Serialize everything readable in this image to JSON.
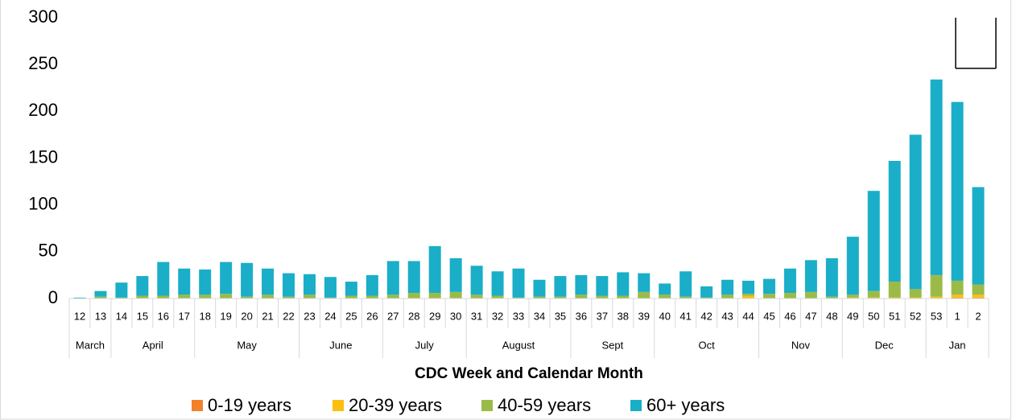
{
  "chart_data": {
    "type": "stacked-bar",
    "x_label": "CDC Week and Calendar Month",
    "categories": [
      "12",
      "13",
      "14",
      "15",
      "16",
      "17",
      "18",
      "19",
      "20",
      "21",
      "22",
      "23",
      "24",
      "25",
      "26",
      "27",
      "28",
      "29",
      "30",
      "31",
      "32",
      "33",
      "34",
      "35",
      "36",
      "37",
      "38",
      "39",
      "40",
      "41",
      "42",
      "43",
      "44",
      "45",
      "46",
      "47",
      "48",
      "49",
      "50",
      "51",
      "52",
      "53",
      "1",
      "2"
    ],
    "category_groups": [
      "March",
      "March",
      "April",
      "April",
      "April",
      "April",
      "May",
      "May",
      "May",
      "May",
      "May",
      "June",
      "June",
      "June",
      "June",
      "July",
      "July",
      "July",
      "July",
      "August",
      "August",
      "August",
      "August",
      "August",
      "Sept",
      "Sept",
      "Sept",
      "Sept",
      "Oct",
      "Oct",
      "Oct",
      "Oct",
      "Oct",
      "Nov",
      "Nov",
      "Nov",
      "Nov",
      "Dec",
      "Dec",
      "Dec",
      "Dec",
      "Jan",
      "Jan",
      "Jan"
    ],
    "series": [
      {
        "name": "0-19 years",
        "color": "#f4802a",
        "values": [
          0,
          0,
          0,
          0,
          0,
          0,
          0,
          0,
          0,
          0,
          0,
          0,
          0,
          0,
          0,
          0,
          0,
          0,
          0,
          0,
          0,
          0,
          0,
          0,
          0,
          0,
          0,
          0,
          0,
          0,
          0,
          0,
          0,
          0,
          0,
          0,
          0,
          0,
          0,
          0,
          0,
          0,
          1,
          1
        ]
      },
      {
        "name": "20-39 years",
        "color": "#fbbf0f",
        "values": [
          0,
          0,
          0,
          0,
          0,
          0,
          0,
          0,
          0,
          0,
          0,
          0,
          0,
          0,
          0,
          0,
          0,
          0,
          0,
          0,
          0,
          0,
          0,
          0,
          0,
          0,
          0,
          0,
          0,
          0,
          0,
          0,
          3,
          0,
          0,
          0,
          0,
          1,
          1,
          1,
          1,
          2,
          3,
          3
        ]
      },
      {
        "name": "40-59 years",
        "color": "#9bbb48",
        "values": [
          0,
          2,
          1,
          3,
          3,
          4,
          4,
          5,
          2,
          4,
          2,
          4,
          1,
          3,
          3,
          4,
          6,
          6,
          7,
          4,
          3,
          1,
          2,
          2,
          4,
          3,
          3,
          7,
          4,
          2,
          1,
          4,
          2,
          5,
          6,
          7,
          2,
          3,
          7,
          17,
          9,
          23,
          15,
          11
        ]
      },
      {
        "name": "60+ years",
        "color": "#1aaec8",
        "values": [
          1,
          6,
          16,
          21,
          36,
          28,
          27,
          34,
          36,
          28,
          25,
          22,
          22,
          15,
          22,
          36,
          34,
          50,
          36,
          31,
          26,
          31,
          18,
          22,
          21,
          21,
          25,
          20,
          12,
          27,
          12,
          16,
          14,
          16,
          26,
          34,
          41,
          62,
          107,
          129,
          165,
          209,
          191,
          104
        ]
      }
    ],
    "ylim": [
      0,
      300
    ],
    "yticks": [
      0,
      50,
      100,
      150,
      200,
      250,
      300
    ],
    "grid": false,
    "legend": "bottom"
  }
}
